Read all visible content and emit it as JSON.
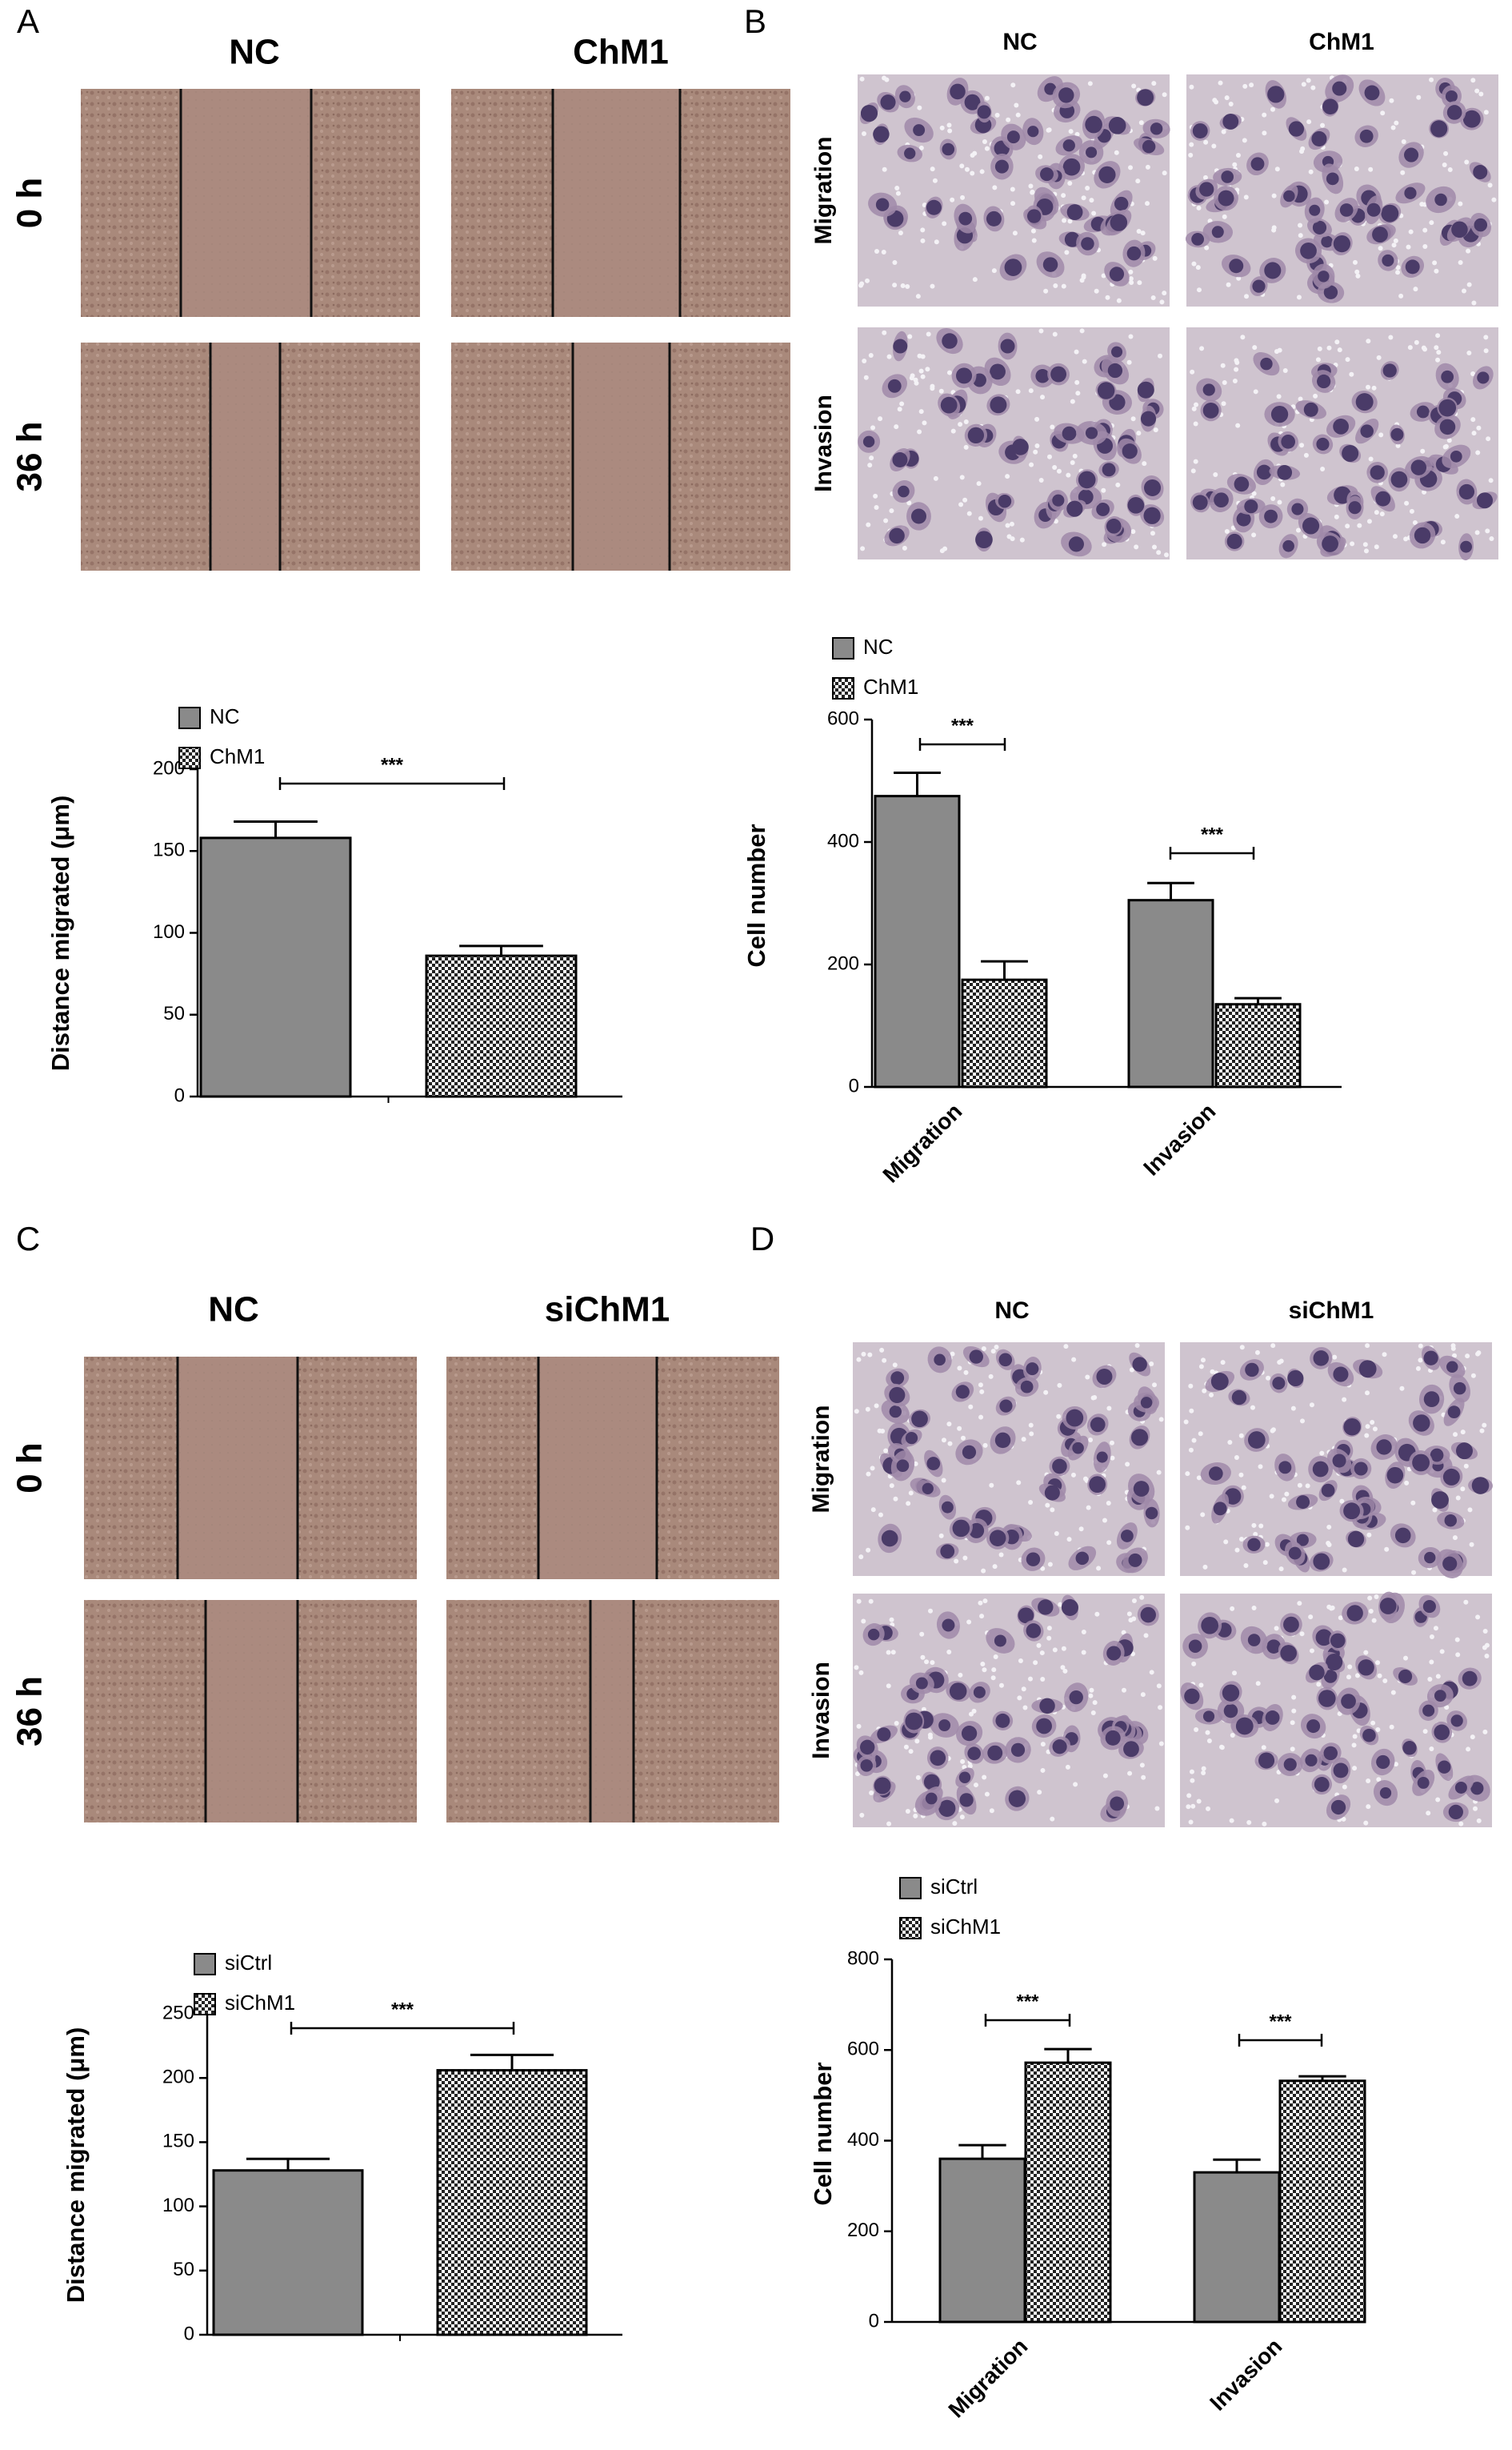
{
  "panels": [
    {
      "label": "A",
      "columns": [
        "NC",
        "ChM1"
      ],
      "rows": [
        "0 h",
        "36 h"
      ]
    },
    {
      "label": "B",
      "columns": [
        "NC",
        "ChM1"
      ],
      "rows": [
        "Migration",
        "Invasion"
      ]
    },
    {
      "label": "C",
      "columns": [
        "NC",
        "siChM1"
      ],
      "rows": [
        "0 h",
        "36 h"
      ]
    },
    {
      "label": "D",
      "columns": [
        "NC",
        "siChM1"
      ],
      "rows": [
        "Migration",
        "Invasion"
      ]
    }
  ],
  "chart_data": [
    {
      "type": "bar",
      "y_label": "Distance migrated  (μm)",
      "categories": [
        null
      ],
      "series": [
        {
          "name": "NC",
          "color": "#8a8a8a",
          "fill": "solid",
          "values": [
            158
          ],
          "errors": [
            10
          ]
        },
        {
          "name": "ChM1",
          "color": "#222222",
          "fill": "checker",
          "values": [
            86
          ],
          "errors": [
            6
          ]
        }
      ],
      "ylim": [
        0,
        200
      ],
      "yticks": [
        0,
        50,
        100,
        150,
        200
      ],
      "annotations": [
        "***"
      ]
    },
    {
      "type": "bar",
      "y_label": "Cell number",
      "categories": [
        "Migration",
        "Invasion"
      ],
      "series": [
        {
          "name": "NC",
          "color": "#8a8a8a",
          "fill": "solid",
          "values": [
            475,
            305
          ],
          "errors": [
            38,
            28
          ]
        },
        {
          "name": "ChM1",
          "color": "#222222",
          "fill": "checker",
          "values": [
            175,
            135
          ],
          "errors": [
            30,
            10
          ]
        }
      ],
      "ylim": [
        0,
        600
      ],
      "yticks": [
        0,
        200,
        400,
        600
      ],
      "annotations": [
        "***",
        "***"
      ]
    },
    {
      "type": "bar",
      "y_label": "Distance migrated  (μm)",
      "categories": [
        null
      ],
      "series": [
        {
          "name": "siCtrl",
          "color": "#8a8a8a",
          "fill": "solid",
          "values": [
            128
          ],
          "errors": [
            9
          ]
        },
        {
          "name": "siChM1",
          "color": "#222222",
          "fill": "checker",
          "values": [
            206
          ],
          "errors": [
            12
          ]
        }
      ],
      "ylim": [
        0,
        250
      ],
      "yticks": [
        0,
        50,
        100,
        150,
        200,
        250
      ],
      "annotations": [
        "***"
      ]
    },
    {
      "type": "bar",
      "y_label": "Cell number",
      "categories": [
        "Migration",
        "Invasion"
      ],
      "series": [
        {
          "name": "siCtrl",
          "color": "#8a8a8a",
          "fill": "solid",
          "values": [
            360,
            330
          ],
          "errors": [
            30,
            28
          ]
        },
        {
          "name": "siChM1",
          "color": "#222222",
          "fill": "checker",
          "values": [
            572,
            532
          ],
          "errors": [
            30,
            10
          ]
        }
      ],
      "ylim": [
        0,
        800
      ],
      "yticks": [
        0,
        200,
        400,
        600,
        800
      ],
      "annotations": [
        "***",
        "***"
      ]
    }
  ]
}
